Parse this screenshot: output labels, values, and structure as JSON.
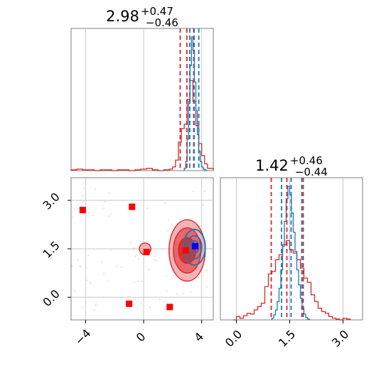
{
  "chart_data": [
    {
      "type": "histogram",
      "panel": "top-left",
      "title_value": "2.98",
      "title_plus": "+0.47",
      "title_minus": "−0.46",
      "xlim": [
        -5.0,
        4.8
      ],
      "xticks": [
        -4,
        0,
        4
      ],
      "grid": true,
      "series": [
        {
          "color": "#d62728",
          "bin_edges": [
            -5.0,
            -4.6,
            -4.2,
            -3.8,
            -3.4,
            -3.0,
            -2.6,
            -2.2,
            -1.8,
            -1.4,
            -1.0,
            -0.6,
            -0.2,
            0.2,
            0.6,
            1.0,
            1.4,
            1.8,
            2.0,
            2.2,
            2.4,
            2.6,
            2.8,
            3.0,
            3.2,
            3.4,
            3.6,
            3.8,
            4.0,
            4.2,
            4.4,
            4.8
          ],
          "counts": [
            1,
            2,
            1,
            1,
            0,
            1,
            1,
            0,
            1,
            1,
            0,
            1,
            2,
            3,
            1,
            0,
            1,
            2,
            5,
            14,
            38,
            56,
            62,
            95,
            120,
            92,
            60,
            36,
            20,
            9,
            3
          ],
          "quantile_lines": [
            2.52,
            2.98,
            3.45
          ]
        },
        {
          "color": "#1f77b4",
          "bin_edges": [
            2.8,
            2.9,
            3.0,
            3.1,
            3.2,
            3.3,
            3.4,
            3.5,
            3.6,
            3.7,
            3.8,
            3.9,
            4.0,
            4.1,
            4.2,
            4.3,
            4.4
          ],
          "counts": [
            3,
            12,
            42,
            92,
            140,
            178,
            160,
            118,
            80,
            48,
            26,
            12,
            5,
            2,
            1,
            0
          ],
          "quantile_lines": [
            3.18,
            3.48,
            3.8
          ]
        }
      ]
    },
    {
      "type": "histogram",
      "panel": "bottom-right",
      "title_value": "1.42",
      "title_plus": "+0.46",
      "title_minus": "−0.44",
      "xlim": [
        -0.45,
        3.55
      ],
      "xticks": [
        0.0,
        1.5,
        3.0
      ],
      "xtick_labels": [
        "0.0",
        "1.5",
        "3.0"
      ],
      "grid": true,
      "series": [
        {
          "color": "#d62728",
          "bin_edges": [
            -0.1,
            0.0,
            0.1,
            0.2,
            0.3,
            0.4,
            0.5,
            0.6,
            0.7,
            0.8,
            0.9,
            1.0,
            1.1,
            1.2,
            1.3,
            1.4,
            1.5,
            1.6,
            1.7,
            1.8,
            1.9,
            2.0,
            2.1,
            2.2,
            2.3,
            2.4,
            2.5,
            2.6,
            2.7,
            2.8,
            2.9,
            3.0,
            3.1,
            3.2
          ],
          "counts": [
            0,
            4,
            2,
            5,
            8,
            7,
            12,
            16,
            20,
            40,
            55,
            58,
            72,
            78,
            90,
            95,
            84,
            80,
            72,
            62,
            50,
            45,
            30,
            22,
            14,
            10,
            8,
            4,
            2,
            1,
            0,
            2,
            1
          ],
          "quantile_lines": [
            0.98,
            1.42,
            1.88
          ]
        },
        {
          "color": "#1f77b4",
          "bin_edges": [
            1.0,
            1.05,
            1.1,
            1.15,
            1.2,
            1.25,
            1.3,
            1.35,
            1.4,
            1.45,
            1.5,
            1.55,
            1.6,
            1.65,
            1.7,
            1.75,
            1.8,
            1.85,
            1.9,
            1.95,
            2.0,
            2.05
          ],
          "counts": [
            2,
            6,
            12,
            22,
            38,
            60,
            88,
            118,
            145,
            160,
            150,
            128,
            105,
            82,
            60,
            42,
            26,
            14,
            7,
            3,
            1
          ],
          "quantile_lines": [
            1.27,
            1.54,
            1.84
          ]
        }
      ]
    },
    {
      "type": "scatter",
      "panel": "bottom-left",
      "xlim": [
        -5.0,
        4.8
      ],
      "ylim": [
        -0.7,
        3.7
      ],
      "xticks": [
        -4,
        0,
        4
      ],
      "yticks": [
        0.0,
        1.5,
        3.0
      ],
      "ytick_labels": [
        "0.0",
        "1.5",
        "3.0"
      ],
      "grid": true,
      "red_density": {
        "color": "#d62728",
        "center": [
          3.0,
          1.45
        ],
        "levels": [
          {
            "rx": 1.25,
            "ry": 0.95
          },
          {
            "rx": 0.95,
            "ry": 0.7
          },
          {
            "rx": 0.6,
            "ry": 0.4
          }
        ],
        "secondary_blob": {
          "center": [
            0.1,
            1.5
          ],
          "rx": 0.4,
          "ry": 0.18
        }
      },
      "blue_density": {
        "color": "#1f77b4",
        "center": [
          3.5,
          1.55
        ],
        "levels": [
          {
            "rx": 0.75,
            "ry": 0.55
          },
          {
            "rx": 0.5,
            "ry": 0.36
          },
          {
            "rx": 0.28,
            "ry": 0.2
          }
        ]
      },
      "red_markers": [
        {
          "x": -4.2,
          "y": 2.7
        },
        {
          "x": -0.8,
          "y": 2.8
        },
        {
          "x": 0.2,
          "y": 1.4
        },
        {
          "x": -1.0,
          "y": -0.2
        },
        {
          "x": 1.8,
          "y": -0.3
        },
        {
          "x": 2.9,
          "y": 1.45
        }
      ],
      "blue_marker": {
        "x": 3.55,
        "y": 1.58
      }
    }
  ],
  "colors": {
    "red": "#d62728",
    "blue": "#1f77b4",
    "grid": "#c8c8c8",
    "axes": "#7f7f7f"
  }
}
